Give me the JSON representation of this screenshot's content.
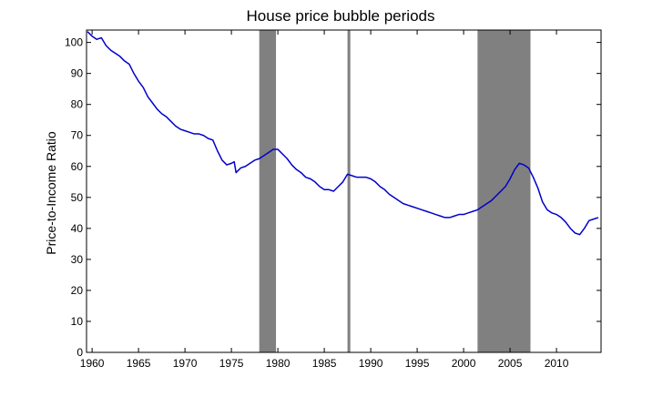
{
  "chart_data": {
    "type": "line",
    "title": "House price bubble periods",
    "xlabel": "",
    "ylabel": "Price-to-Income Ratio",
    "xlim": [
      1959.4,
      2014.8
    ],
    "ylim": [
      0,
      104
    ],
    "x_ticks": [
      1960,
      1965,
      1970,
      1975,
      1980,
      1985,
      1990,
      1995,
      2000,
      2005,
      2010
    ],
    "y_ticks": [
      0,
      10,
      20,
      30,
      40,
      50,
      60,
      70,
      80,
      90,
      100
    ],
    "grid": false,
    "legend": "none",
    "colors": {
      "line": "#0000cc",
      "shading": "#808080",
      "axes": "#000000",
      "background": "#ffffff"
    },
    "shaded_periods": [
      {
        "start": 1978.0,
        "end": 1979.8
      },
      {
        "start": 1987.5,
        "end": 1987.8
      },
      {
        "start": 2001.5,
        "end": 2007.2
      }
    ],
    "series": [
      {
        "color": "#0000cc",
        "points": [
          [
            1959.5,
            103.5
          ],
          [
            1960.0,
            102.0
          ],
          [
            1960.5,
            101.0
          ],
          [
            1961.0,
            101.5
          ],
          [
            1961.5,
            99.0
          ],
          [
            1962.0,
            97.5
          ],
          [
            1962.5,
            96.5
          ],
          [
            1963.0,
            95.5
          ],
          [
            1963.5,
            94.0
          ],
          [
            1964.0,
            93.0
          ],
          [
            1964.5,
            90.0
          ],
          [
            1965.0,
            87.5
          ],
          [
            1965.5,
            85.5
          ],
          [
            1966.0,
            82.5
          ],
          [
            1966.5,
            80.5
          ],
          [
            1967.0,
            78.5
          ],
          [
            1967.5,
            77.0
          ],
          [
            1968.0,
            76.0
          ],
          [
            1968.5,
            74.5
          ],
          [
            1969.0,
            73.0
          ],
          [
            1969.5,
            72.0
          ],
          [
            1970.0,
            71.5
          ],
          [
            1970.5,
            71.0
          ],
          [
            1971.0,
            70.5
          ],
          [
            1971.5,
            70.5
          ],
          [
            1972.0,
            70.0
          ],
          [
            1972.5,
            69.0
          ],
          [
            1973.0,
            68.5
          ],
          [
            1973.5,
            65.0
          ],
          [
            1974.0,
            62.0
          ],
          [
            1974.5,
            60.5
          ],
          [
            1975.0,
            61.0
          ],
          [
            1975.3,
            61.5
          ],
          [
            1975.5,
            58.0
          ],
          [
            1976.0,
            59.5
          ],
          [
            1976.5,
            60.0
          ],
          [
            1977.0,
            61.0
          ],
          [
            1977.5,
            62.0
          ],
          [
            1978.0,
            62.5
          ],
          [
            1978.5,
            63.5
          ],
          [
            1979.0,
            64.5
          ],
          [
            1979.5,
            65.5
          ],
          [
            1980.0,
            65.5
          ],
          [
            1980.5,
            64.0
          ],
          [
            1981.0,
            62.5
          ],
          [
            1981.5,
            60.5
          ],
          [
            1982.0,
            59.0
          ],
          [
            1982.5,
            58.0
          ],
          [
            1983.0,
            56.5
          ],
          [
            1983.5,
            56.0
          ],
          [
            1984.0,
            55.0
          ],
          [
            1984.5,
            53.5
          ],
          [
            1985.0,
            52.5
          ],
          [
            1985.5,
            52.5
          ],
          [
            1986.0,
            52.0
          ],
          [
            1986.5,
            53.5
          ],
          [
            1987.0,
            55.0
          ],
          [
            1987.5,
            57.5
          ],
          [
            1988.0,
            57.0
          ],
          [
            1988.5,
            56.5
          ],
          [
            1989.0,
            56.5
          ],
          [
            1989.5,
            56.5
          ],
          [
            1990.0,
            56.0
          ],
          [
            1990.5,
            55.0
          ],
          [
            1991.0,
            53.5
          ],
          [
            1991.5,
            52.5
          ],
          [
            1992.0,
            51.0
          ],
          [
            1992.5,
            50.0
          ],
          [
            1993.0,
            49.0
          ],
          [
            1993.5,
            48.0
          ],
          [
            1994.0,
            47.5
          ],
          [
            1994.5,
            47.0
          ],
          [
            1995.0,
            46.5
          ],
          [
            1995.5,
            46.0
          ],
          [
            1996.0,
            45.5
          ],
          [
            1996.5,
            45.0
          ],
          [
            1997.0,
            44.5
          ],
          [
            1997.5,
            44.0
          ],
          [
            1998.0,
            43.5
          ],
          [
            1998.5,
            43.5
          ],
          [
            1999.0,
            44.0
          ],
          [
            1999.5,
            44.5
          ],
          [
            2000.0,
            44.5
          ],
          [
            2000.5,
            45.0
          ],
          [
            2001.0,
            45.5
          ],
          [
            2001.5,
            46.0
          ],
          [
            2002.0,
            47.0
          ],
          [
            2002.5,
            48.0
          ],
          [
            2003.0,
            49.0
          ],
          [
            2003.5,
            50.5
          ],
          [
            2004.0,
            52.0
          ],
          [
            2004.5,
            53.5
          ],
          [
            2005.0,
            56.0
          ],
          [
            2005.5,
            59.0
          ],
          [
            2006.0,
            61.0
          ],
          [
            2006.5,
            60.5
          ],
          [
            2007.0,
            59.5
          ],
          [
            2007.5,
            56.5
          ],
          [
            2008.0,
            53.0
          ],
          [
            2008.5,
            48.5
          ],
          [
            2009.0,
            46.0
          ],
          [
            2009.5,
            45.0
          ],
          [
            2010.0,
            44.5
          ],
          [
            2010.5,
            43.5
          ],
          [
            2011.0,
            42.0
          ],
          [
            2011.5,
            40.0
          ],
          [
            2012.0,
            38.5
          ],
          [
            2012.5,
            38.0
          ],
          [
            2013.0,
            40.0
          ],
          [
            2013.5,
            42.5
          ],
          [
            2014.0,
            43.0
          ],
          [
            2014.5,
            43.5
          ]
        ]
      }
    ]
  }
}
